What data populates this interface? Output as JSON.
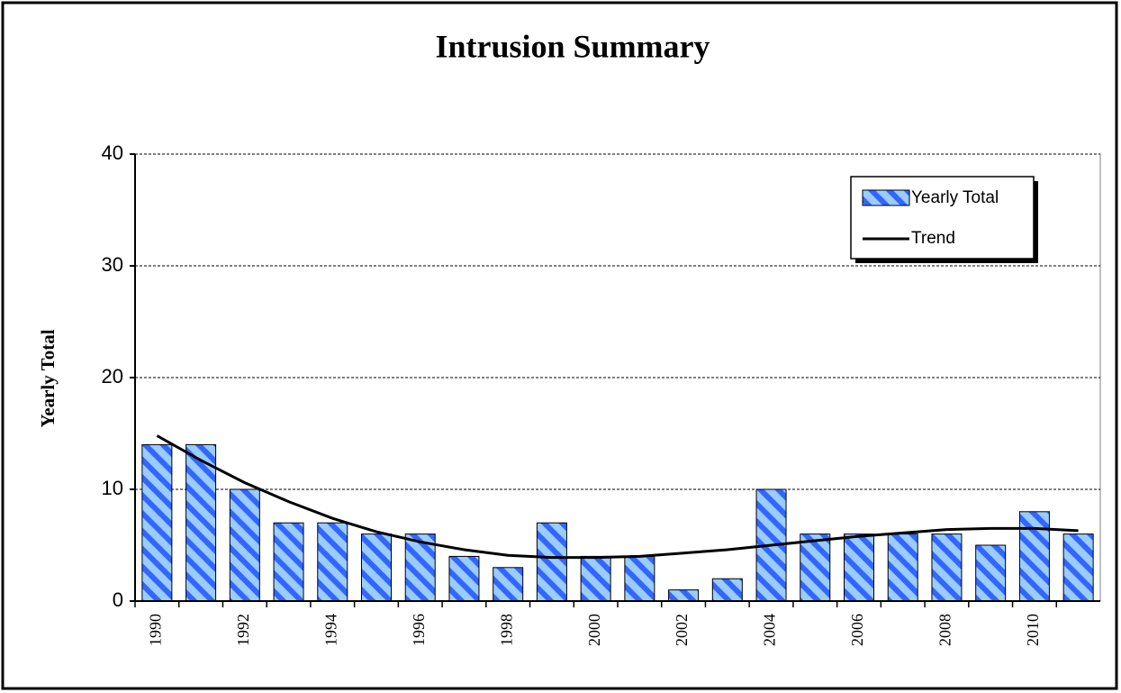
{
  "chart_data": {
    "type": "bar",
    "title": "Intrusion Summary",
    "y_label": "Yearly Total",
    "categories": [
      "1990",
      null,
      "1992",
      null,
      "1994",
      null,
      "1996",
      null,
      "1998",
      null,
      "2000",
      null,
      "2002",
      null,
      "2004",
      null,
      "2006",
      null,
      "2008",
      null,
      "2010",
      null
    ],
    "series": [
      {
        "name": "Yearly Total",
        "type": "bar",
        "color": "#99CCFF",
        "pattern_color": "#3366FF",
        "values": [
          14,
          14,
          10,
          7,
          7,
          6,
          6,
          4,
          3,
          7,
          4,
          4,
          1,
          2,
          10,
          6,
          6,
          6,
          6,
          5,
          8,
          6
        ]
      },
      {
        "name": "Trend",
        "type": "line",
        "color": "#000000",
        "values": [
          14.8,
          12.6,
          10.6,
          8.9,
          7.4,
          6.2,
          5.3,
          4.6,
          4.1,
          3.9,
          3.9,
          4.0,
          4.3,
          4.6,
          5.0,
          5.4,
          5.8,
          6.1,
          6.4,
          6.5,
          6.5,
          6.3
        ]
      }
    ],
    "ylim": [
      0,
      40
    ],
    "yticks": [
      0,
      10,
      20,
      30,
      40
    ],
    "grid": true,
    "legend": "upper right"
  }
}
